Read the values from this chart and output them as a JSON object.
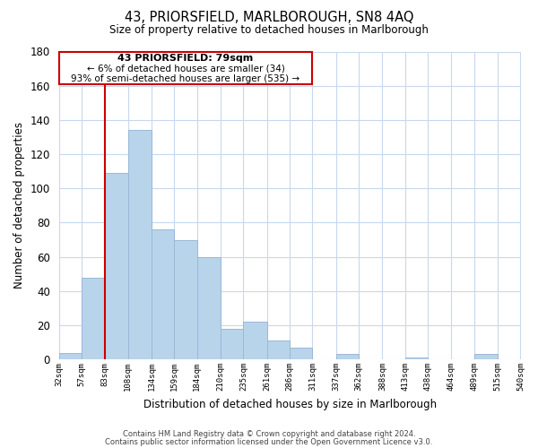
{
  "title": "43, PRIORSFIELD, MARLBOROUGH, SN8 4AQ",
  "subtitle": "Size of property relative to detached houses in Marlborough",
  "xlabel": "Distribution of detached houses by size in Marlborough",
  "ylabel": "Number of detached properties",
  "bar_edges": [
    32,
    57,
    83,
    108,
    134,
    159,
    184,
    210,
    235,
    261,
    286,
    311,
    337,
    362,
    388,
    413,
    438,
    464,
    489,
    515,
    540
  ],
  "bar_heights": [
    4,
    48,
    109,
    134,
    76,
    70,
    60,
    18,
    22,
    11,
    7,
    0,
    3,
    0,
    0,
    1,
    0,
    0,
    3,
    0
  ],
  "bar_color": "#b8d4ea",
  "bar_edgecolor": "#9ab8d8",
  "marker_color": "#cc0000",
  "ylim": [
    0,
    180
  ],
  "yticks": [
    0,
    20,
    40,
    60,
    80,
    100,
    120,
    140,
    160,
    180
  ],
  "annotation_title": "43 PRIORSFIELD: 79sqm",
  "annotation_line1": "← 6% of detached houses are smaller (34)",
  "annotation_line2": "93% of semi-detached houses are larger (535) →",
  "footer1": "Contains HM Land Registry data © Crown copyright and database right 2024.",
  "footer2": "Contains public sector information licensed under the Open Government Licence v3.0.",
  "background_color": "#ffffff",
  "grid_color": "#c8d8ec"
}
